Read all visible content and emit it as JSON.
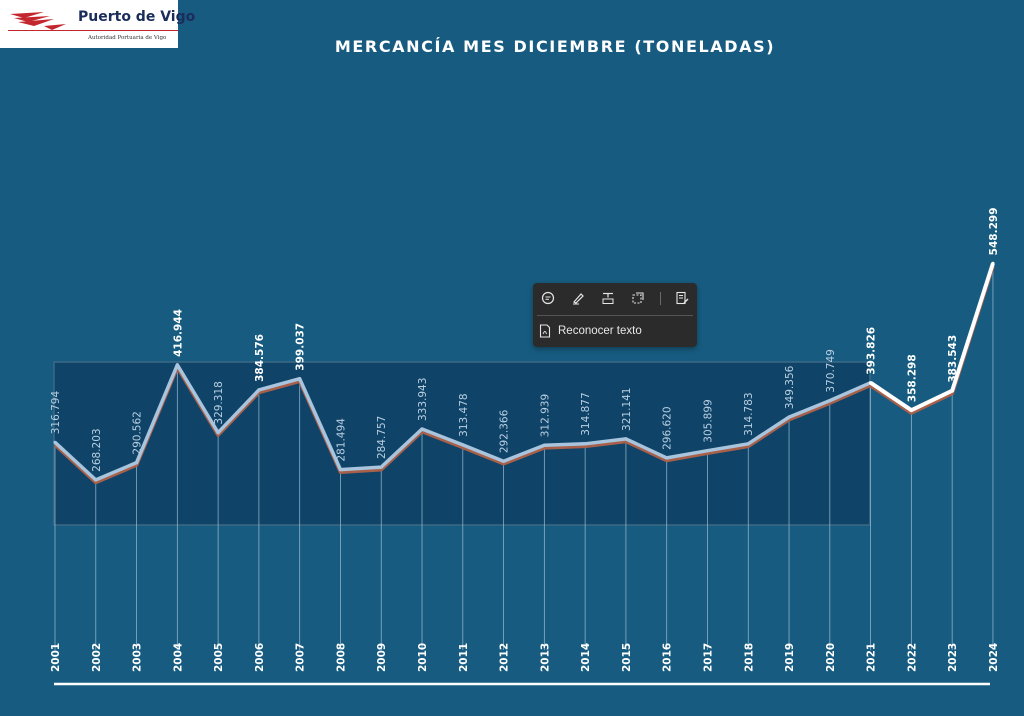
{
  "logo": {
    "name": "Puerto de Vigo",
    "subtitle": "Autoridad Portuaria de Vigo",
    "brand_color": "#c4262e",
    "text_color": "#1b2d5a"
  },
  "colors": {
    "background": "#175c80",
    "highlight_panel": "#0f4468",
    "line_main": "#a9c4dd",
    "line_highlight": "#ffffff",
    "line_shadow": "#a8604a"
  },
  "chart_data": {
    "type": "line",
    "title": "MERCANCÍA MES DICIEMBRE (TONELADAS)",
    "xlabel": "",
    "ylabel": "",
    "x": [
      "2001",
      "2002",
      "2003",
      "2004",
      "2005",
      "2006",
      "2007",
      "2008",
      "2009",
      "2010",
      "2011",
      "2012",
      "2013",
      "2014",
      "2015",
      "2016",
      "2017",
      "2018",
      "2019",
      "2020",
      "2021",
      "2022",
      "2023",
      "2024"
    ],
    "series": [
      {
        "values": [
          316.794,
          268.203,
          290.562,
          416.944,
          329.318,
          384.576,
          399.037,
          281.494,
          284.757,
          333.943,
          313.478,
          292.366,
          312.939,
          314.877,
          321.141,
          296.62,
          305.899,
          314.783,
          349.356,
          370.749,
          393.826,
          358.298,
          383.543,
          548.299
        ]
      }
    ],
    "data_labels": [
      "316.794",
      "268.203",
      "290.562",
      "416.944",
      "329.318",
      "384.576",
      "399.037",
      "281.494",
      "284.757",
      "333.943",
      "313.478",
      "292.366",
      "312.939",
      "314.877",
      "321.141",
      "296.620",
      "305.899",
      "314.783",
      "349.356",
      "370.749",
      "393.826",
      "358.298",
      "383.543",
      "548.299"
    ],
    "highlighted_labels": [
      "416.944",
      "384.576",
      "399.037",
      "393.826",
      "358.298",
      "383.543",
      "548.299"
    ],
    "grid": "vertical drop lines at each year",
    "legend": "none"
  },
  "toolbar": {
    "icons": [
      "comment-icon",
      "highlight-pen-icon",
      "text-box-icon",
      "select-area-icon",
      "notes-edit-icon"
    ],
    "ocr_label": "Reconocer texto",
    "ocr_icon": "pdf-document-icon"
  }
}
